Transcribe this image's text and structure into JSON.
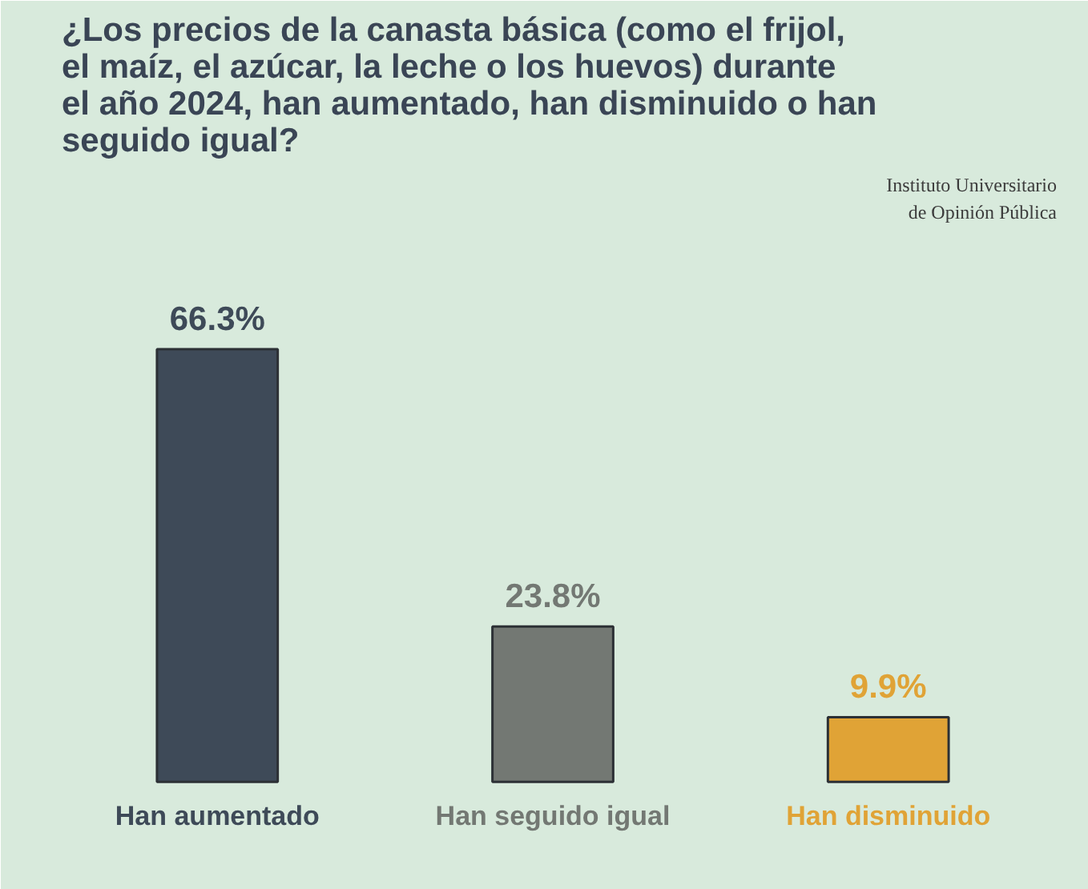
{
  "chart_data": {
    "type": "bar",
    "title": "¿Los precios de la canasta básica (como el frijol, el maíz, el azúcar, la leche o los huevos) durante el año 2024, han aumentado, han disminuido o han seguido igual?",
    "categories": [
      "Han aumentado",
      "Han seguido igual",
      "Han disminuido"
    ],
    "values": [
      66.3,
      23.8,
      9.9
    ],
    "value_labels": [
      "66.3%",
      "23.8%",
      "9.9%"
    ],
    "colors": [
      "#3e4a58",
      "#737873",
      "#e0a336"
    ],
    "annotations": [
      "Instituto Universitario de Opinión Pública"
    ]
  }
}
